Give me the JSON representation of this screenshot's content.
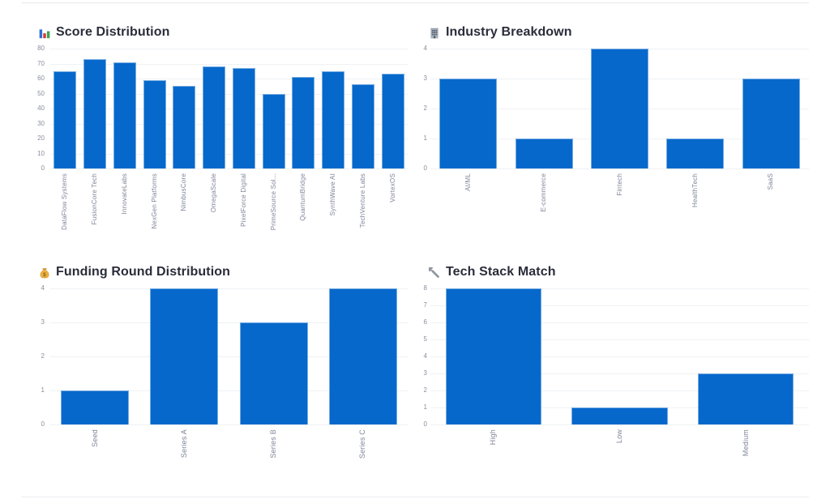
{
  "page": {
    "background": "#ffffff",
    "divider_color": "#e9e9ee"
  },
  "colors": {
    "bar_fill": "#0768cb",
    "bar_edge": "rgba(255,255,255,0.45)",
    "grid_line": "#eff1f4",
    "tick_text": "#8a8e9e",
    "title_text": "#2a2d3a"
  },
  "chart_data": [
    {
      "type": "bar",
      "icon": "bar-chart-icon",
      "title": "Score Distribution",
      "categories": [
        "DataFlow Systems",
        "FusionCore Tech",
        "InnovateLabs",
        "NexGen Platforms",
        "NimbusCore",
        "OmegaScale",
        "PixelForce Digital",
        "PrimeSource Sol...",
        "QuantumBridge",
        "SynthWave AI",
        "TechVenture Labs",
        "VortexOS"
      ],
      "values": [
        65,
        73,
        71,
        59,
        55,
        68,
        67,
        50,
        61,
        65,
        56,
        63
      ],
      "xlabel": "",
      "ylabel": "",
      "ylim": [
        0,
        80
      ],
      "yticks": [
        0,
        10,
        20,
        30,
        40,
        50,
        60,
        70,
        80
      ],
      "grid": true,
      "legend": false
    },
    {
      "type": "bar",
      "icon": "office-building-icon",
      "title": "Industry Breakdown",
      "categories": [
        "AI/ML",
        "E-commerce",
        "Fintech",
        "HealthTech",
        "SaaS"
      ],
      "values": [
        3,
        1,
        4,
        1,
        3
      ],
      "xlabel": "",
      "ylabel": "",
      "ylim": [
        0,
        4
      ],
      "yticks": [
        0,
        1,
        2,
        3,
        4
      ],
      "grid": true,
      "legend": false
    },
    {
      "type": "bar",
      "icon": "money-bag-icon",
      "title": "Funding Round Distribution",
      "categories": [
        "Seed",
        "Series A",
        "Series B",
        "Series C"
      ],
      "values": [
        1,
        4,
        3,
        4
      ],
      "xlabel": "",
      "ylabel": "",
      "ylim": [
        0,
        4
      ],
      "yticks": [
        0,
        1,
        2,
        3,
        4
      ],
      "grid": true,
      "legend": false
    },
    {
      "type": "bar",
      "icon": "wrench-icon",
      "title": "Tech Stack Match",
      "categories": [
        "High",
        "Low",
        "Medium"
      ],
      "values": [
        8,
        1,
        3
      ],
      "xlabel": "",
      "ylabel": "",
      "ylim": [
        0,
        8
      ],
      "yticks": [
        0,
        1,
        2,
        3,
        4,
        5,
        6,
        7,
        8
      ],
      "grid": true,
      "legend": false
    }
  ]
}
